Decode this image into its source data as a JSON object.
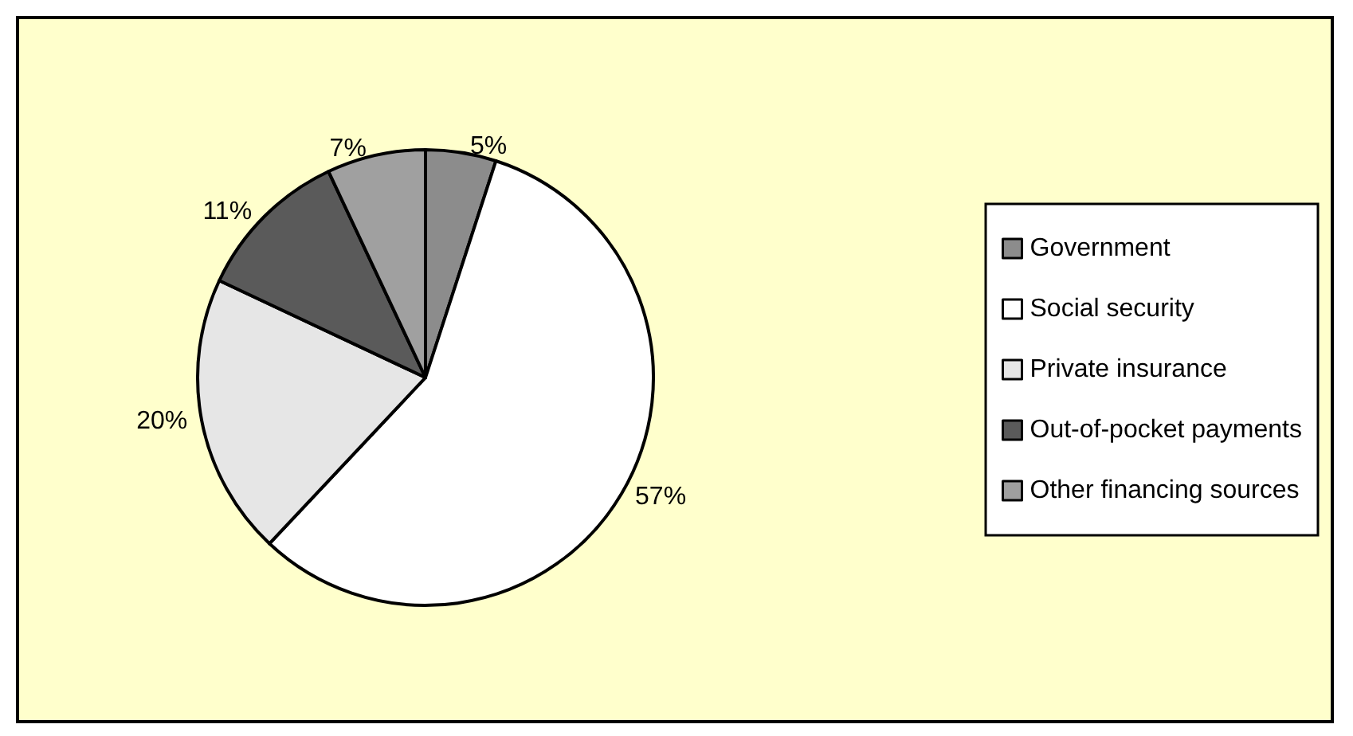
{
  "chart_data": {
    "type": "pie",
    "categories": [
      "Government",
      "Social security",
      "Private insurance",
      "Out-of-pocket payments",
      "Other financing sources"
    ],
    "values": [
      5,
      57,
      20,
      11,
      7
    ],
    "value_labels": [
      "5%",
      "57%",
      "20%",
      "11%",
      "7%"
    ],
    "colors": [
      "#8c8c8c",
      "#ffffff",
      "#e6e6e6",
      "#5a5a5a",
      "#a0a0a0"
    ],
    "legend": "right"
  }
}
